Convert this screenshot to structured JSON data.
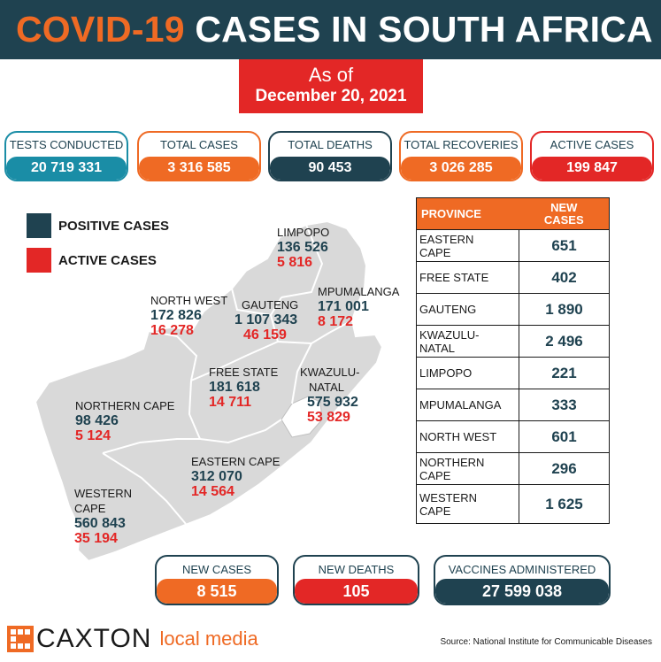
{
  "header": {
    "title_part1": "COVID-19",
    "title_part2": "CASES IN SOUTH AFRICA"
  },
  "date": {
    "line1": "As of",
    "line2": "December 20, 2021"
  },
  "top_stats": [
    {
      "label": "TESTS CONDUCTED",
      "value": "20 719 331",
      "color": "#1a8da6"
    },
    {
      "label": "TOTAL CASES",
      "value": "3 316 585",
      "color": "#ef6a24"
    },
    {
      "label": "TOTAL DEATHS",
      "value": "90 453",
      "color": "#1f4250"
    },
    {
      "label": "TOTAL RECOVERIES",
      "value": "3 026 285",
      "color": "#ef6a24"
    },
    {
      "label": "ACTIVE CASES",
      "value": "199 847",
      "color": "#e32726"
    }
  ],
  "legend": [
    {
      "label": "POSITIVE CASES",
      "color": "#1f4250"
    },
    {
      "label": "ACTIVE CASES",
      "color": "#e32726"
    }
  ],
  "map_labels": [
    {
      "name": "LIMPOPO",
      "positive": "136 526",
      "active": "5 816"
    },
    {
      "name": "NORTH WEST",
      "positive": "172 826",
      "active": "16 278"
    },
    {
      "name": "GAUTENG",
      "positive": "1 107 343",
      "active": "46 159"
    },
    {
      "name": "MPUMALANGA",
      "positive": "171 001",
      "active": "8 172"
    },
    {
      "name": "FREE STATE",
      "positive": "181 618",
      "active": "14 711"
    },
    {
      "name": "KWAZULU-NATAL",
      "name_line1": "KWAZULU-",
      "name_line2": "NATAL",
      "positive": "575 932",
      "active": "53 829"
    },
    {
      "name": "NORTHERN CAPE",
      "positive": "98 426",
      "active": "5 124"
    },
    {
      "name": "EASTERN CAPE",
      "positive": "312 070",
      "active": "14 564"
    },
    {
      "name": "WESTERN CAPE",
      "name_line1": "WESTERN",
      "name_line2": "CAPE",
      "positive": "560 843",
      "active": "35 194"
    }
  ],
  "table": {
    "col_province": "PROVINCE",
    "col_new_line1": "NEW",
    "col_new_line2": "CASES",
    "rows": [
      {
        "line1": "EASTERN",
        "line2": "CAPE",
        "value": "651"
      },
      {
        "line1": "FREE STATE",
        "line2": "",
        "value": "402"
      },
      {
        "line1": "GAUTENG",
        "line2": "",
        "value": "1 890"
      },
      {
        "line1": "KWAZULU-",
        "line2": "NATAL",
        "value": "2 496"
      },
      {
        "line1": "LIMPOPO",
        "line2": "",
        "value": "221"
      },
      {
        "line1": "MPUMALANGA",
        "line2": "",
        "value": "333"
      },
      {
        "line1": "NORTH WEST",
        "line2": "",
        "value": "601"
      },
      {
        "line1": "NORTHERN",
        "line2": "CAPE",
        "value": "296"
      },
      {
        "line1": "WESTERN",
        "line2": "CAPE",
        "value": "1 625"
      }
    ]
  },
  "bottom_stats": [
    {
      "label": "NEW CASES",
      "value": "8 515",
      "color": "#ef6a24"
    },
    {
      "label": "NEW DEATHS",
      "value": "105",
      "color": "#e32726"
    },
    {
      "label": "VACCINES ADMINISTERED",
      "value": "27 599 038",
      "color": "#1f4250"
    }
  ],
  "footer": {
    "brand": "CAXTON",
    "brand_sub": "local media",
    "source": "Source: National Institute for Communicable Diseases"
  },
  "chart_data": {
    "type": "table",
    "title": "COVID-19 CASES IN SOUTH AFRICA",
    "date": "December 20, 2021",
    "categories": [
      "EASTERN CAPE",
      "FREE STATE",
      "GAUTENG",
      "KWAZULU-NATAL",
      "LIMPOPO",
      "MPUMALANGA",
      "NORTH WEST",
      "NORTHERN CAPE",
      "WESTERN CAPE"
    ],
    "series": [
      {
        "name": "POSITIVE CASES",
        "values": [
          312070,
          181618,
          1107343,
          575932,
          136526,
          171001,
          172826,
          98426,
          560843
        ]
      },
      {
        "name": "ACTIVE CASES",
        "values": [
          14564,
          14711,
          46159,
          53829,
          5816,
          8172,
          16278,
          5124,
          35194
        ]
      },
      {
        "name": "NEW CASES",
        "values": [
          651,
          402,
          1890,
          2496,
          221,
          333,
          601,
          296,
          1625
        ]
      }
    ],
    "totals": {
      "TESTS CONDUCTED": 20719331,
      "TOTAL CASES": 3316585,
      "TOTAL DEATHS": 90453,
      "TOTAL RECOVERIES": 3026285,
      "ACTIVE CASES": 199847,
      "NEW CASES": 8515,
      "NEW DEATHS": 105,
      "VACCINES ADMINISTERED": 27599038
    }
  }
}
